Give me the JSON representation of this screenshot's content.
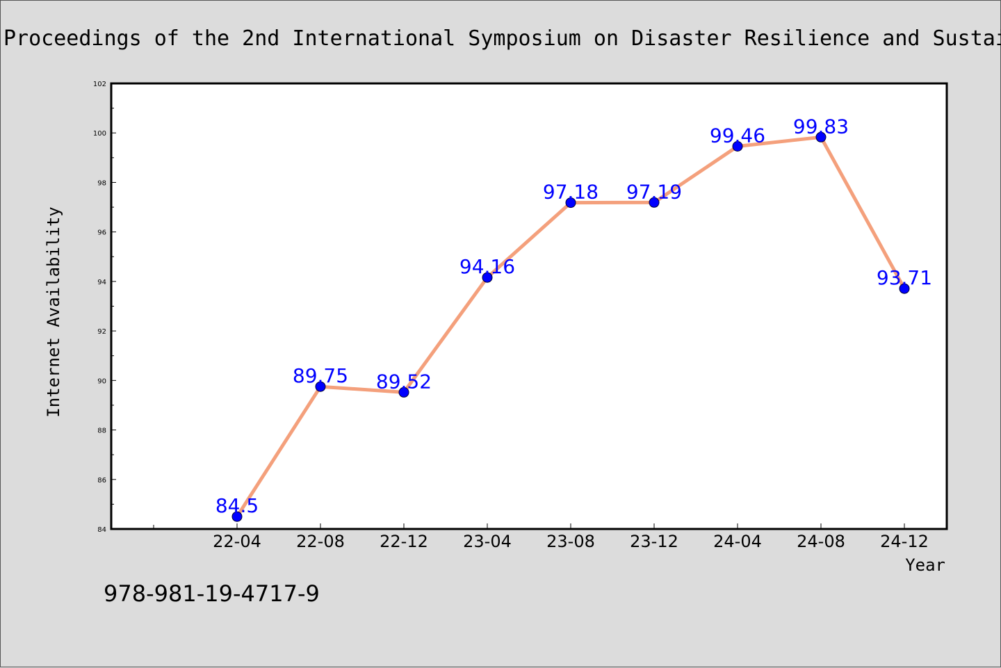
{
  "colors": {
    "background": "#dcdcdc",
    "plot_background": "#ffffff",
    "line": "#f4a07c",
    "marker": "#0000ff",
    "data_label": "#0000ff"
  },
  "footer": {
    "isbn": "978-981-19-4717-9"
  },
  "chart_data": {
    "type": "line",
    "title": "Proceedings of the 2nd International Symposium on Disaster Resilience and Sustai",
    "xlabel": "Year",
    "ylabel": "Internet Availability",
    "categories": [
      "22-04",
      "22-08",
      "22-12",
      "23-04",
      "23-08",
      "23-12",
      "24-04",
      "24-08",
      "24-12"
    ],
    "series": [
      {
        "values": [
          84.5,
          89.75,
          89.52,
          94.16,
          97.18,
          97.19,
          99.46,
          99.83,
          93.71
        ],
        "labels": [
          "84.5",
          "89.75",
          "89.52",
          "94.16",
          "97.18",
          "97.19",
          "99.46",
          "99.83",
          "93.71"
        ]
      }
    ],
    "ylim": [
      84,
      102
    ],
    "yticks": [
      84,
      86,
      88,
      90,
      92,
      94,
      96,
      98,
      100,
      102
    ],
    "ytick_labels": [
      "84",
      "86",
      "88",
      "90",
      "92",
      "94",
      "96",
      "98",
      "100",
      "102"
    ],
    "grid": false,
    "legend": "none"
  }
}
